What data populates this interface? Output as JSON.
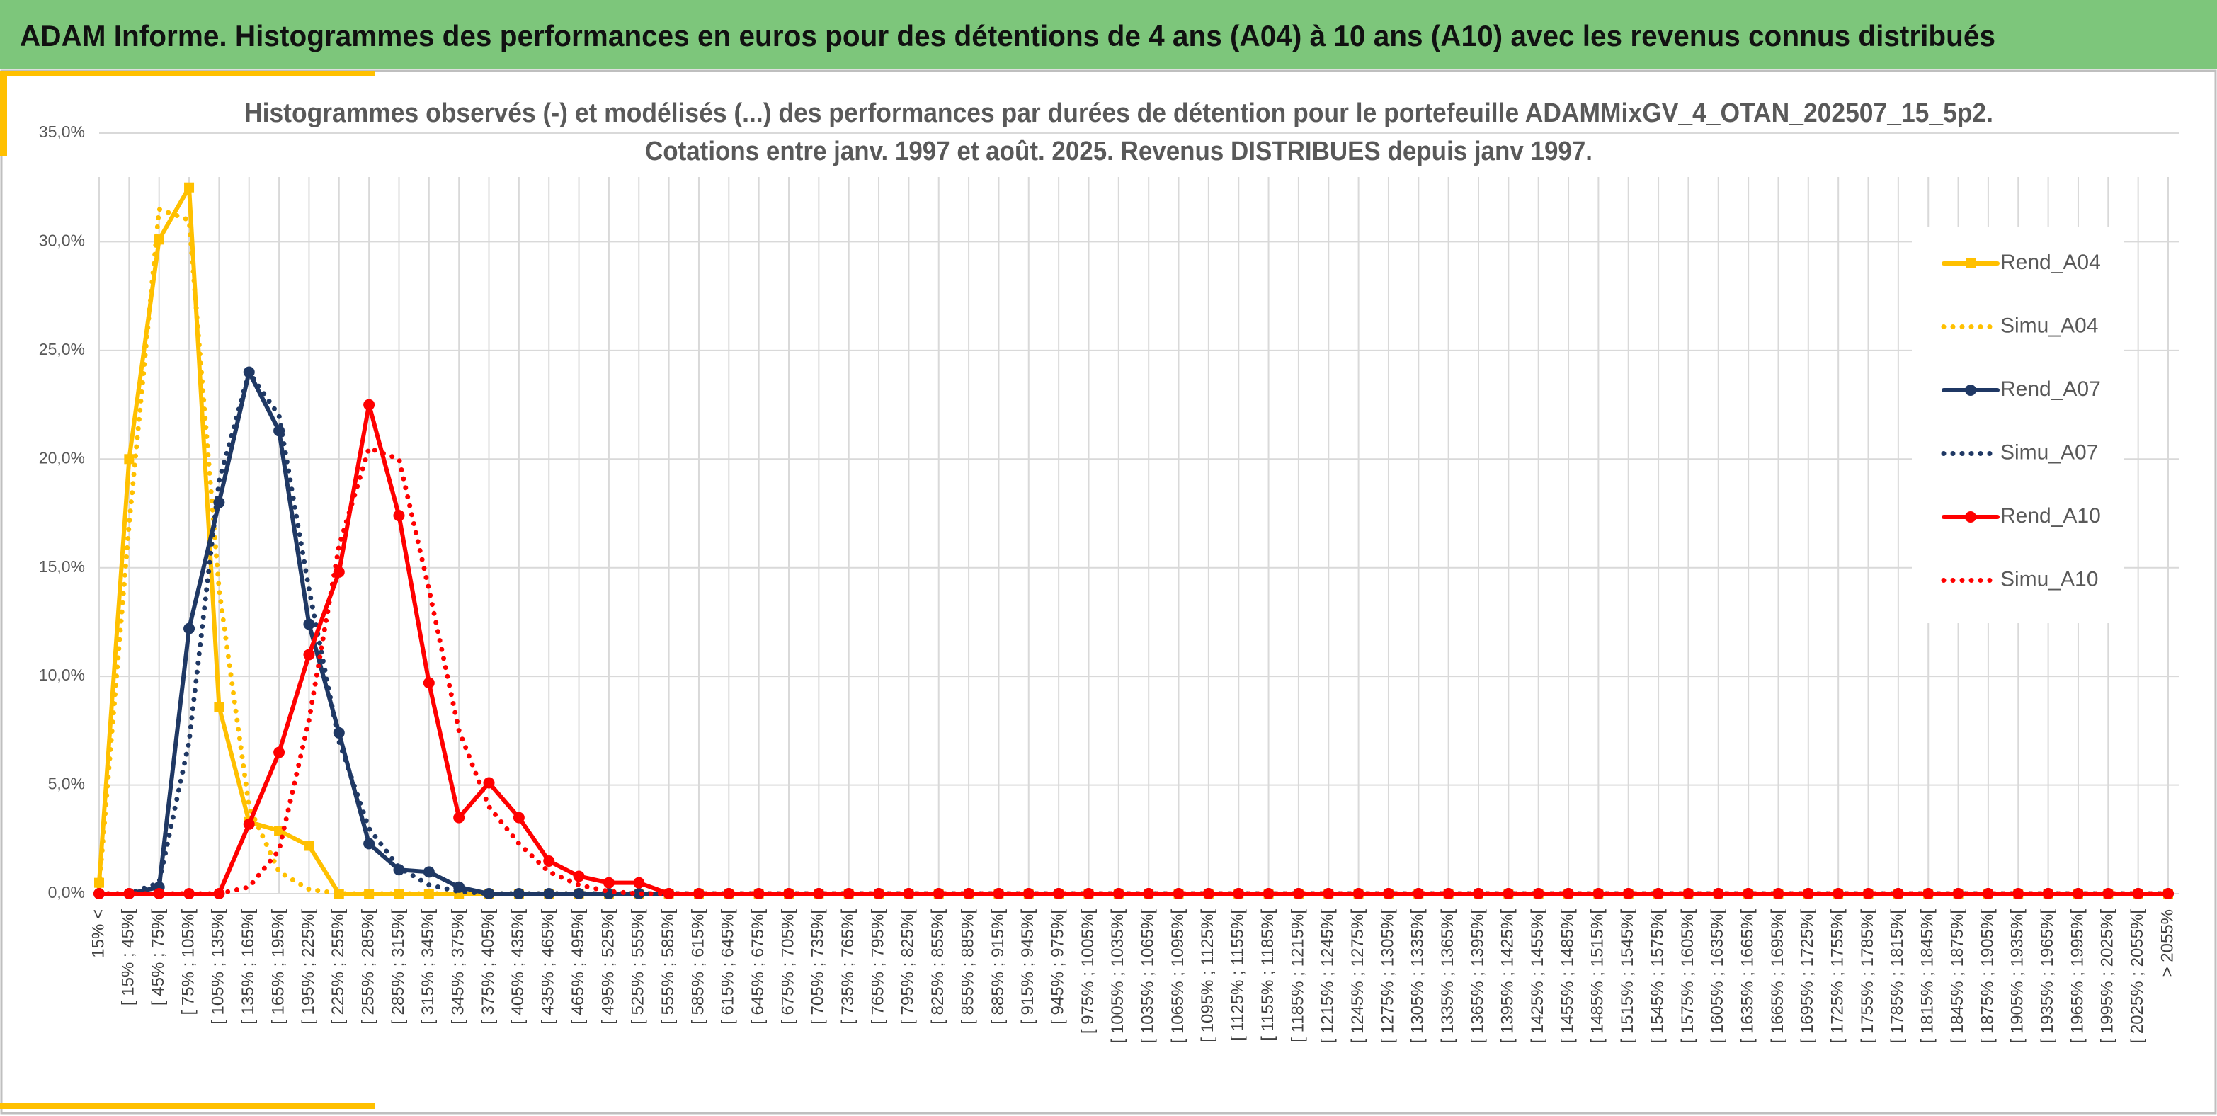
{
  "header": {
    "title": "ADAM Informe. Histogrammes des performances en euros pour des détentions de 4 ans (A04) à 10 ans (A10) avec les revenus connus distribués"
  },
  "chart_data": {
    "type": "line",
    "title": [
      "Histogrammes observés (-) et modélisés (...) des performances par durées de détention pour le portefeuille ADAMMixGV_4_OTAN_202507_15_5p2.",
      "Cotations entre janv. 1997 et août. 2025. Revenus DISTRIBUES depuis janv 1997."
    ],
    "categories": [
      "15% <",
      "[ 15% ; 45%[",
      "[ 45% ; 75%[",
      "[ 75% ; 105%[",
      "[ 105% ; 135%[",
      "[ 135% ; 165%[",
      "[ 165% ; 195%[",
      "[ 195% ; 225%[",
      "[ 225% ; 255%[",
      "[ 255% ; 285%[",
      "[ 285% ; 315%[",
      "[ 315% ; 345%[",
      "[ 345% ; 375%[",
      "[ 375% ; 405%[",
      "[ 405% ; 435%[",
      "[ 435% ; 465%[",
      "[ 465% ; 495%[",
      "[ 495% ; 525%[",
      "[ 525% ; 555%[",
      "[ 555% ; 585%[",
      "[ 585% ; 615%[",
      "[ 615% ; 645%[",
      "[ 645% ; 675%[",
      "[ 675% ; 705%[",
      "[ 705% ; 735%[",
      "[ 735% ; 765%[",
      "[ 765% ; 795%[",
      "[ 795% ; 825%[",
      "[ 825% ; 855%[",
      "[ 855% ; 885%[",
      "[ 885% ; 915%[",
      "[ 915% ; 945%[",
      "[ 945% ; 975%[",
      "[ 975% ; 1005%[",
      "[ 1005% ; 1035%[",
      "[ 1035% ; 1065%[",
      "[ 1065% ; 1095%[",
      "[ 1095% ; 1125%[",
      "[ 1125% ; 1155%[",
      "[ 1155% ; 1185%[",
      "[ 1185% ; 1215%[",
      "[ 1215% ; 1245%[",
      "[ 1245% ; 1275%[",
      "[ 1275% ; 1305%[",
      "[ 1305% ; 1335%[",
      "[ 1335% ; 1365%[",
      "[ 1365% ; 1395%[",
      "[ 1395% ; 1425%[",
      "[ 1425% ; 1455%[",
      "[ 1455% ; 1485%[",
      "[ 1485% ; 1515%[",
      "[ 1515% ; 1545%[",
      "[ 1545% ; 1575%[",
      "[ 1575% ; 1605%[",
      "[ 1605% ; 1635%[",
      "[ 1635% ; 1665%[",
      "[ 1665% ; 1695%[",
      "[ 1695% ; 1725%[",
      "[ 1725% ; 1755%[",
      "[ 1755% ; 1785%[",
      "[ 1785% ; 1815%[",
      "[ 1815% ; 1845%[",
      "[ 1845% ; 1875%[",
      "[ 1875% ; 1905%[",
      "[ 1905% ; 1935%[",
      "[ 1935% ; 1965%[",
      "[ 1965% ; 1995%[",
      "[ 1995% ; 2025%[",
      "[ 2025% ; 2055%[",
      "> 2055%"
    ],
    "series": [
      {
        "name": "Rend_A04",
        "color": "#ffc000",
        "style": "solid",
        "marker": "square",
        "values": [
          0.5,
          20.0,
          30.1,
          32.5,
          8.6,
          3.3,
          2.9,
          2.2,
          0,
          0,
          0,
          0,
          0,
          0,
          0,
          0,
          0,
          0,
          0,
          0,
          0,
          0,
          0,
          0,
          0,
          0,
          0,
          0,
          0,
          0,
          0,
          0,
          0,
          0,
          0,
          0,
          0,
          0,
          0,
          0,
          0,
          0,
          0,
          0,
          0,
          0,
          0,
          0,
          0,
          0,
          0,
          0,
          0,
          0,
          0,
          0,
          0,
          0,
          0,
          0,
          0,
          0,
          0,
          0,
          0,
          0,
          0,
          0,
          0,
          0
        ]
      },
      {
        "name": "Simu_A04",
        "color": "#ffc000",
        "style": "dotted",
        "values": [
          0.3,
          17,
          31.5,
          31,
          14,
          4,
          1,
          0.2,
          0,
          0,
          0,
          0,
          0,
          0,
          0,
          0,
          0,
          0,
          0,
          0,
          0,
          0,
          0,
          0,
          0,
          0,
          0,
          0,
          0,
          0,
          0,
          0,
          0,
          0,
          0,
          0,
          0,
          0,
          0,
          0,
          0,
          0,
          0,
          0,
          0,
          0,
          0,
          0,
          0,
          0,
          0,
          0,
          0,
          0,
          0,
          0,
          0,
          0,
          0,
          0,
          0,
          0,
          0,
          0,
          0,
          0,
          0,
          0,
          0,
          0
        ]
      },
      {
        "name": "Rend_A07",
        "color": "#1f3864",
        "style": "solid",
        "marker": "circle",
        "values": [
          0,
          0,
          0.3,
          12.2,
          18.0,
          24.0,
          21.3,
          12.4,
          7.4,
          2.3,
          1.1,
          1.0,
          0.3,
          0,
          0,
          0,
          0,
          0,
          0,
          0,
          0,
          0,
          0,
          0,
          0,
          0,
          0,
          0,
          0,
          0,
          0,
          0,
          0,
          0,
          0,
          0,
          0,
          0,
          0,
          0,
          0,
          0,
          0,
          0,
          0,
          0,
          0,
          0,
          0,
          0,
          0,
          0,
          0,
          0,
          0,
          0,
          0,
          0,
          0,
          0,
          0,
          0,
          0,
          0,
          0,
          0,
          0,
          0,
          0,
          0
        ]
      },
      {
        "name": "Simu_A07",
        "color": "#1f3864",
        "style": "dotted",
        "values": [
          0,
          0,
          0.5,
          7,
          19,
          24,
          22,
          14,
          7,
          3,
          1.2,
          0.4,
          0.1,
          0,
          0,
          0,
          0,
          0,
          0,
          0,
          0,
          0,
          0,
          0,
          0,
          0,
          0,
          0,
          0,
          0,
          0,
          0,
          0,
          0,
          0,
          0,
          0,
          0,
          0,
          0,
          0,
          0,
          0,
          0,
          0,
          0,
          0,
          0,
          0,
          0,
          0,
          0,
          0,
          0,
          0,
          0,
          0,
          0,
          0,
          0,
          0,
          0,
          0,
          0,
          0,
          0,
          0,
          0,
          0,
          0
        ]
      },
      {
        "name": "Rend_A10",
        "color": "#ff0000",
        "style": "solid",
        "marker": "circle",
        "values": [
          0,
          0,
          0,
          0,
          0,
          3.2,
          6.5,
          11.0,
          14.8,
          22.5,
          17.4,
          9.7,
          3.5,
          5.1,
          3.5,
          1.5,
          0.8,
          0.5,
          0.5,
          0,
          0,
          0,
          0,
          0,
          0,
          0,
          0,
          0,
          0,
          0,
          0,
          0,
          0,
          0,
          0,
          0,
          0,
          0,
          0,
          0,
          0,
          0,
          0,
          0,
          0,
          0,
          0,
          0,
          0,
          0,
          0,
          0,
          0,
          0,
          0,
          0,
          0,
          0,
          0,
          0,
          0,
          0,
          0,
          0,
          0,
          0,
          0,
          0,
          0,
          0
        ]
      },
      {
        "name": "Simu_A10",
        "color": "#ff0000",
        "style": "dotted",
        "values": [
          0,
          0,
          0,
          0,
          0,
          0.3,
          2,
          8,
          16,
          20.5,
          20,
          14,
          7.5,
          4,
          2.3,
          1,
          0.4,
          0.1,
          0,
          0,
          0,
          0,
          0,
          0,
          0,
          0,
          0,
          0,
          0,
          0,
          0,
          0,
          0,
          0,
          0,
          0,
          0,
          0,
          0,
          0,
          0,
          0,
          0,
          0,
          0,
          0,
          0,
          0,
          0,
          0,
          0,
          0,
          0,
          0,
          0,
          0,
          0,
          0,
          0,
          0,
          0,
          0,
          0,
          0,
          0,
          0,
          0,
          0,
          0,
          0
        ]
      }
    ],
    "ylim": [
      0,
      35
    ],
    "yticks": [
      {
        "value": 0,
        "label": "0,0%"
      },
      {
        "value": 5,
        "label": "5,0%"
      },
      {
        "value": 10,
        "label": "10,0%"
      },
      {
        "value": 15,
        "label": "15,0%"
      },
      {
        "value": 20,
        "label": "20,0%"
      },
      {
        "value": 25,
        "label": "25,0%"
      },
      {
        "value": 30,
        "label": "30,0%"
      },
      {
        "value": 35,
        "label": "35,0%"
      }
    ],
    "grid": true,
    "legend": "right"
  }
}
